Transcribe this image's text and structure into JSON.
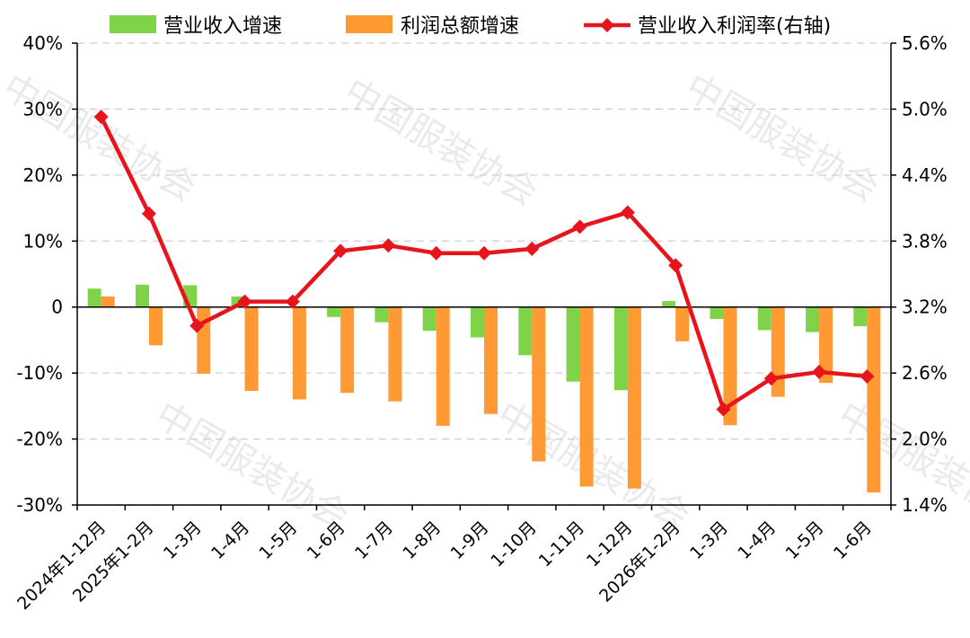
{
  "watermark": "中国服装协会",
  "chart_data": {
    "type": "bar",
    "categories": [
      "2024年1-12月",
      "2025年1-2月",
      "1-3月",
      "1-4月",
      "1-5月",
      "1-6月",
      "1-7月",
      "1-8月",
      "1-9月",
      "1-10月",
      "1-11月",
      "1-12月",
      "2026年1-2月",
      "1-3月",
      "1-4月",
      "1-5月",
      "1-6月"
    ],
    "series": [
      {
        "name": "营业收入增速",
        "type": "bar",
        "axis": "left",
        "color": "#7ed348",
        "values": [
          2.8,
          3.4,
          3.3,
          1.6,
          0.0,
          -1.5,
          -2.3,
          -3.6,
          -4.6,
          -7.3,
          -11.3,
          -12.6,
          0.9,
          -1.8,
          -3.5,
          -3.8,
          -2.9
        ]
      },
      {
        "name": "利润总额增速",
        "type": "bar",
        "axis": "left",
        "color": "#ff9933",
        "values": [
          1.6,
          -5.8,
          -10.1,
          -12.7,
          -14.0,
          -13.0,
          -14.3,
          -18.0,
          -16.2,
          -23.4,
          -27.2,
          -27.5,
          -5.2,
          -17.9,
          -13.6,
          -11.5,
          -28.1
        ]
      },
      {
        "name": "营业收入利润率(右轴)",
        "type": "line",
        "axis": "right",
        "color": "#e8141b",
        "marker": "diamond",
        "values": [
          4.93,
          4.05,
          3.03,
          3.25,
          3.25,
          3.71,
          3.76,
          3.69,
          3.69,
          3.73,
          3.93,
          4.06,
          3.58,
          2.27,
          2.55,
          2.61,
          2.57
        ]
      }
    ],
    "y_left": {
      "min": -30,
      "max": 40,
      "step": 10,
      "ticks": [
        "40%",
        "30%",
        "20%",
        "10%",
        "0",
        "-10%",
        "-20%",
        "-30%"
      ]
    },
    "y_right": {
      "min": 1.4,
      "max": 5.6,
      "step": 0.6,
      "ticks": [
        "5.6%",
        "5.0%",
        "4.4%",
        "3.8%",
        "3.2%",
        "2.6%",
        "2.0%",
        "1.4%"
      ]
    },
    "grid": true,
    "legend_position": "top"
  }
}
